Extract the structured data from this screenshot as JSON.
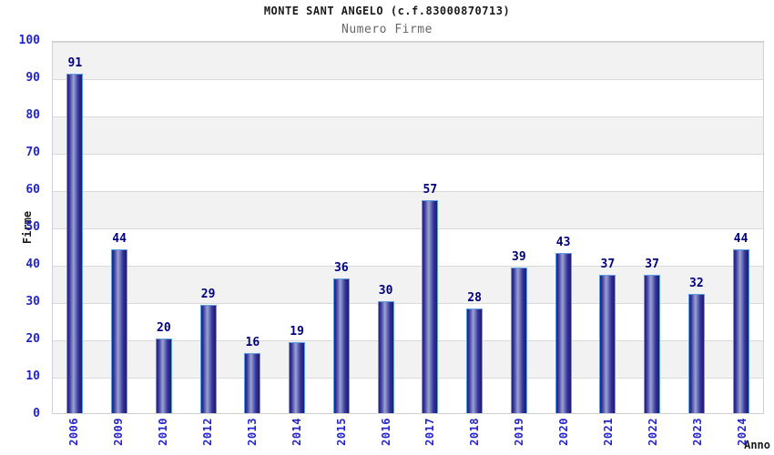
{
  "header": {
    "title": "MONTE SANT ANGELO (c.f.83000870713)",
    "subtitle": "Numero Firme"
  },
  "chart_data": {
    "type": "bar",
    "title": "MONTE SANT ANGELO (c.f.83000870713)",
    "subtitle": "Numero Firme",
    "xlabel": "Anno",
    "ylabel": "Firme",
    "categories": [
      "2006",
      "2009",
      "2010",
      "2012",
      "2013",
      "2014",
      "2015",
      "2016",
      "2017",
      "2018",
      "2019",
      "2020",
      "2021",
      "2022",
      "2023",
      "2024"
    ],
    "values": [
      91,
      44,
      20,
      29,
      16,
      19,
      36,
      30,
      57,
      28,
      39,
      43,
      37,
      37,
      32,
      44
    ],
    "ylim": [
      0,
      100
    ],
    "ytick_step": 10,
    "yticks": [
      0,
      10,
      20,
      30,
      40,
      50,
      60,
      70,
      80,
      90,
      100
    ],
    "grid": true,
    "legend": false,
    "bands_alternating": true
  },
  "colors": {
    "axis_label_blue": "#2424cc",
    "value_label_navy": "#00007d",
    "bar_border": "#5e9ee2",
    "bar_dark": "#23237d",
    "bar_highlight": "#9ba3d1",
    "band_gray": "#f2f2f2",
    "gridline": "#d9d9d9",
    "plot_border": "#d0d0d0",
    "title_color": "#1a1a1a",
    "subtitle_color": "#666666"
  }
}
